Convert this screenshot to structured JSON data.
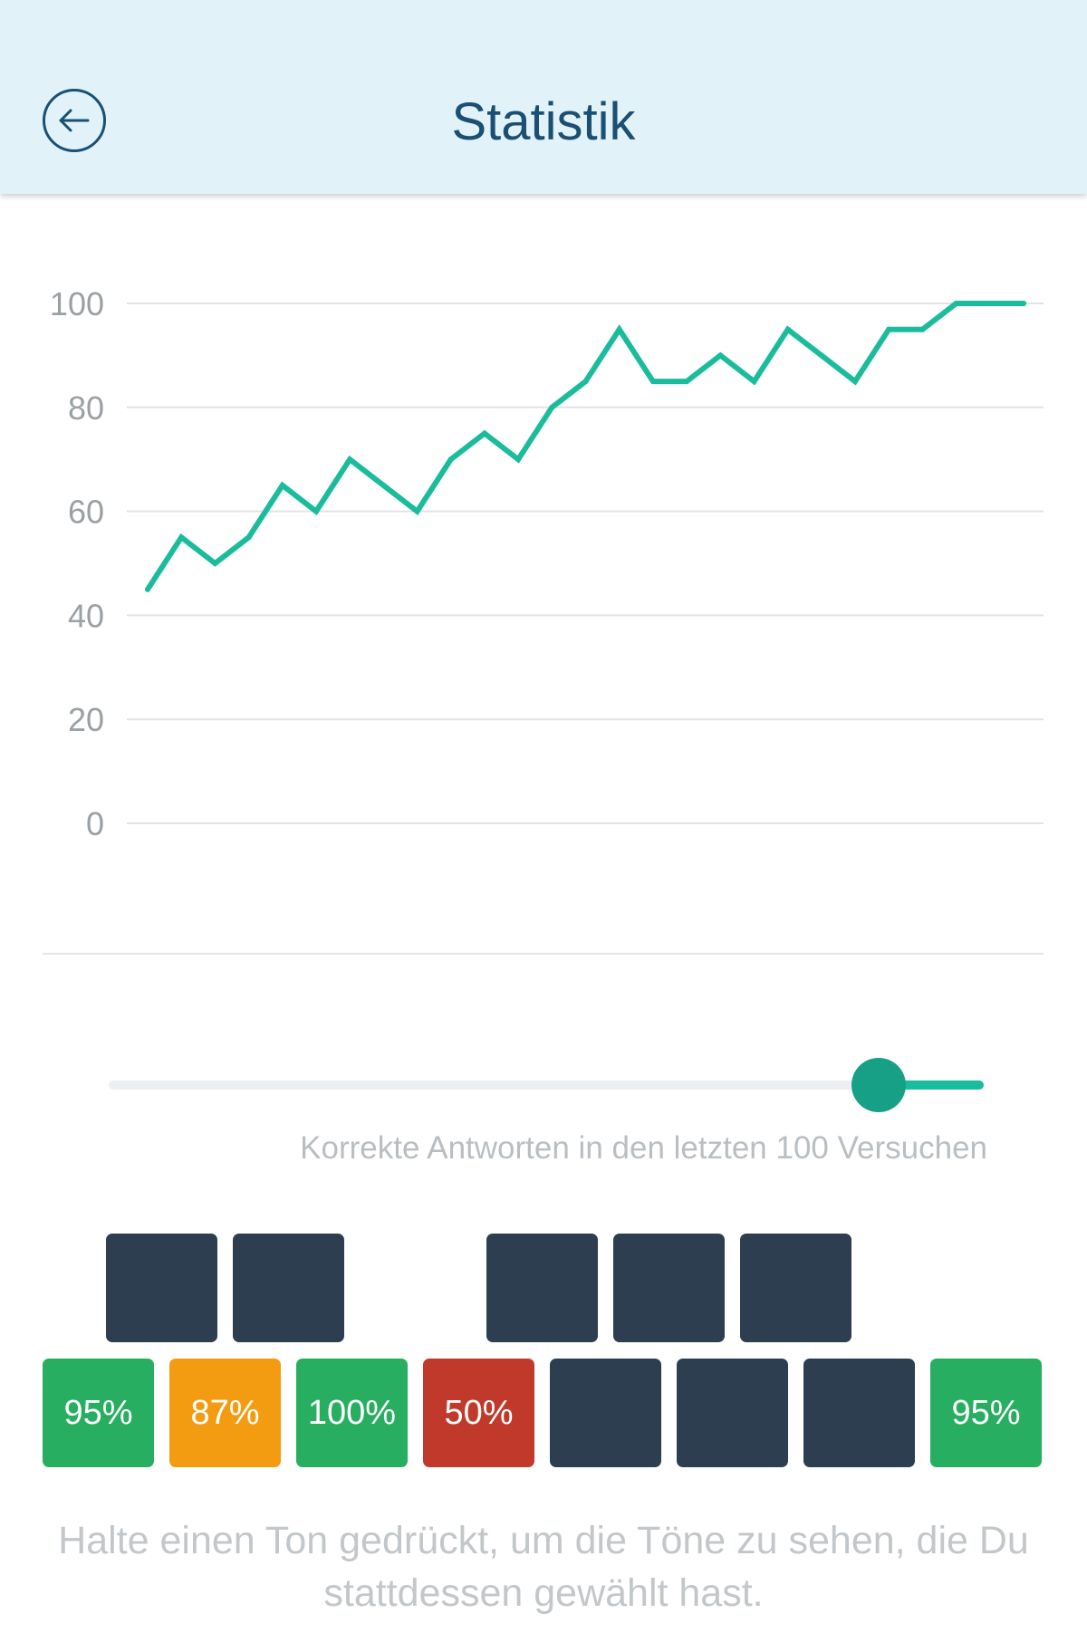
{
  "header": {
    "title": "Statistik",
    "back_icon": "arrow-left-circle-icon"
  },
  "chart_data": {
    "type": "line",
    "title": "",
    "xlabel": "",
    "ylabel": "",
    "ylim": [
      0,
      100
    ],
    "yticks": [
      0,
      20,
      40,
      60,
      80,
      100
    ],
    "grid": true,
    "color": "#1abc9c",
    "series": [
      {
        "values": [
          45,
          55,
          50,
          55,
          65,
          60,
          70,
          65,
          60,
          70,
          75,
          70,
          80,
          85,
          95,
          85,
          85,
          90,
          85,
          95,
          90,
          85,
          95,
          95,
          100,
          100,
          100
        ]
      }
    ]
  },
  "slider": {
    "value": 0.88
  },
  "caption": "Korrekte Antworten in den letzten 100 Versuchen",
  "keys": {
    "top": [
      {
        "label": "",
        "color": "#2c3e50"
      },
      {
        "label": "",
        "color": "#2c3e50"
      },
      null,
      {
        "label": "",
        "color": "#2c3e50"
      },
      {
        "label": "",
        "color": "#2c3e50"
      },
      {
        "label": "",
        "color": "#2c3e50"
      },
      null
    ],
    "bottom": [
      {
        "label": "95%",
        "color": "#27ae60"
      },
      {
        "label": "87%",
        "color": "#f39c12"
      },
      {
        "label": "100%",
        "color": "#27ae60"
      },
      {
        "label": "50%",
        "color": "#c0392b"
      },
      {
        "label": "",
        "color": "#2c3e50"
      },
      {
        "label": "",
        "color": "#2c3e50"
      },
      {
        "label": "",
        "color": "#2c3e50"
      },
      {
        "label": "95%",
        "color": "#27ae60"
      }
    ]
  },
  "hint": "Halte einen Ton gedrückt, um die Töne zu sehen, die Du stattdessen gewählt hast."
}
